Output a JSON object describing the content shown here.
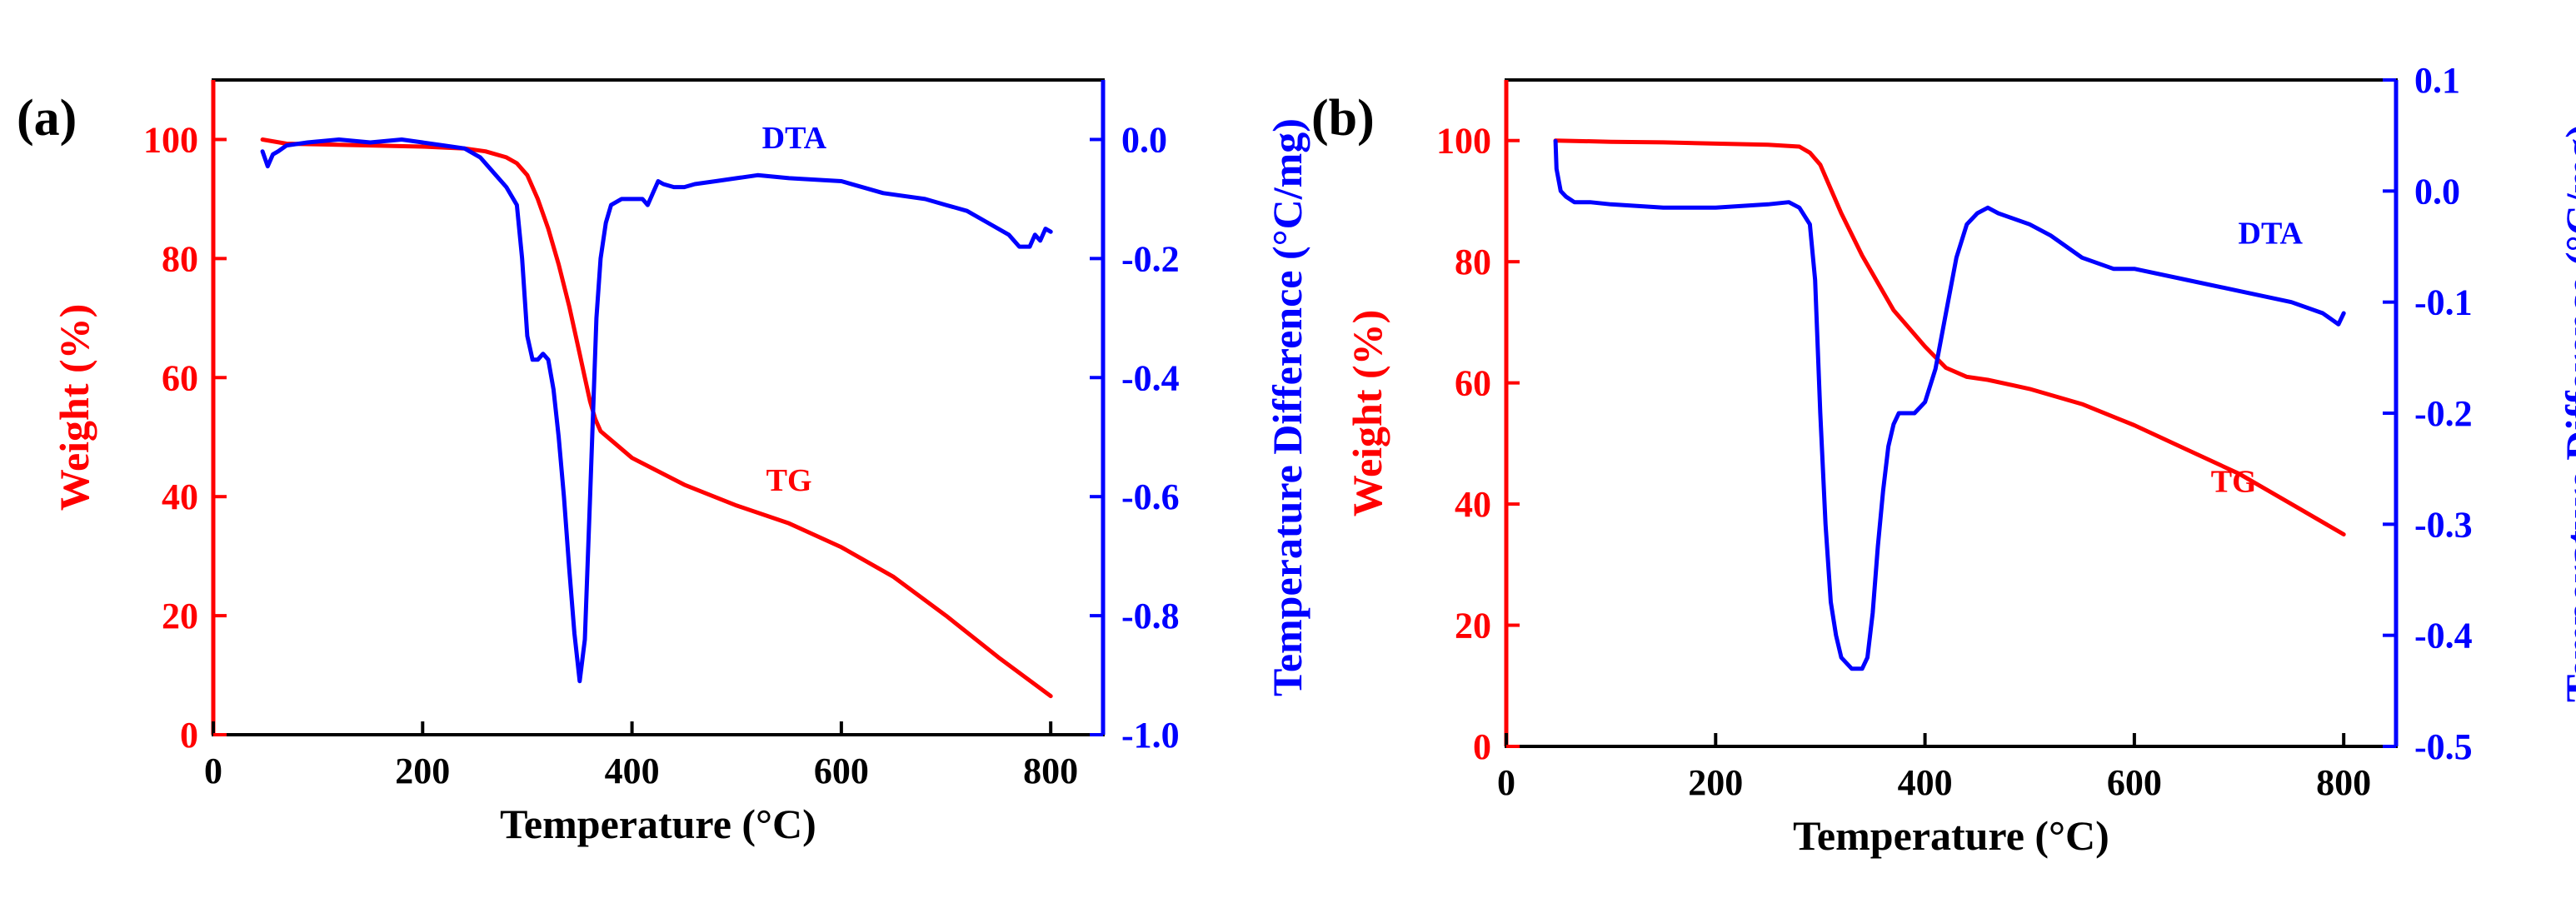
{
  "chart_data": [
    {
      "panel_label": "(a)",
      "type": "line",
      "xlabel": "Temperature (°C)",
      "ylabel_left": "Weight (%)",
      "ylabel_right": "Temperature Difference (°C/mg)",
      "xlim": [
        0,
        850
      ],
      "ylim_left": [
        0,
        110
      ],
      "ylim_right": [
        -1.0,
        0.1
      ],
      "xticks": [
        "0",
        "200",
        "400",
        "600",
        "800"
      ],
      "yticks_left": [
        "0",
        "20",
        "40",
        "60",
        "80",
        "100"
      ],
      "yticks_right": [
        "-1.0",
        "-0.8",
        "-0.6",
        "-0.4",
        "-0.2",
        "0.0"
      ],
      "annotations": [
        {
          "text": "DTA",
          "x": 555,
          "y_left": 98.5
        },
        {
          "text": "TG",
          "x": 550,
          "y_left": 41
        }
      ],
      "series": [
        {
          "name": "TG",
          "axis": "left",
          "color": "#ff0000",
          "x": [
            47,
            70,
            100,
            150,
            200,
            240,
            260,
            280,
            290,
            300,
            310,
            320,
            330,
            340,
            350,
            355,
            360,
            365,
            370,
            380,
            400,
            450,
            500,
            550,
            600,
            650,
            700,
            750,
            800
          ],
          "y": [
            100,
            99.3,
            99.2,
            99,
            98.8,
            98.5,
            98,
            97,
            96,
            94,
            90,
            85,
            79,
            72,
            64,
            60,
            56,
            53,
            51,
            49.5,
            46.5,
            42,
            38.5,
            35.5,
            31.5,
            26.5,
            20,
            13,
            6.5
          ]
        },
        {
          "name": "DTA",
          "axis": "right",
          "color": "#0000ff",
          "x": [
            47,
            52,
            57,
            62,
            70,
            90,
            120,
            150,
            180,
            200,
            220,
            240,
            255,
            270,
            280,
            290,
            295,
            300,
            305,
            310,
            315,
            320,
            325,
            330,
            335,
            340,
            345,
            350,
            355,
            360,
            363,
            366,
            370,
            375,
            380,
            390,
            400,
            410,
            415,
            420,
            425,
            430,
            440,
            450,
            460,
            480,
            500,
            520,
            550,
            600,
            640,
            680,
            700,
            720,
            740,
            760,
            770,
            780,
            785,
            790,
            795,
            800
          ],
          "y": [
            -0.02,
            -0.045,
            -0.025,
            -0.02,
            -0.01,
            -0.005,
            0.0,
            -0.005,
            0.0,
            -0.005,
            -0.01,
            -0.015,
            -0.03,
            -0.06,
            -0.08,
            -0.11,
            -0.2,
            -0.33,
            -0.37,
            -0.37,
            -0.36,
            -0.37,
            -0.42,
            -0.5,
            -0.6,
            -0.72,
            -0.83,
            -0.91,
            -0.84,
            -0.6,
            -0.45,
            -0.3,
            -0.2,
            -0.14,
            -0.11,
            -0.1,
            -0.1,
            -0.1,
            -0.11,
            -0.09,
            -0.07,
            -0.075,
            -0.08,
            -0.08,
            -0.075,
            -0.07,
            -0.065,
            -0.06,
            -0.065,
            -0.07,
            -0.09,
            -0.1,
            -0.11,
            -0.12,
            -0.14,
            -0.16,
            -0.18,
            -0.18,
            -0.16,
            -0.17,
            -0.15,
            -0.155
          ]
        }
      ]
    },
    {
      "panel_label": "(b)",
      "type": "line",
      "xlabel": "Temperature (°C)",
      "ylabel_left": "Weight (%)",
      "ylabel_right": "Temperature Difference (°C/mg)",
      "xlim": [
        0,
        850
      ],
      "ylim_left": [
        0,
        110
      ],
      "ylim_right": [
        -0.5,
        0.1
      ],
      "xticks": [
        "0",
        "200",
        "400",
        "600",
        "800"
      ],
      "yticks_left": [
        "0",
        "20",
        "40",
        "60",
        "80",
        "100"
      ],
      "yticks_right": [
        "-0.5",
        "-0.4",
        "-0.3",
        "-0.2",
        "-0.1",
        "0.0",
        "0.1"
      ],
      "annotations": [
        {
          "text": "DTA",
          "x": 730,
          "y_left": 83
        },
        {
          "text": "TG",
          "x": 695,
          "y_left": 42
        }
      ],
      "series": [
        {
          "name": "TG",
          "axis": "left",
          "color": "#ff0000",
          "x": [
            47,
            100,
            150,
            200,
            250,
            280,
            290,
            300,
            310,
            320,
            340,
            360,
            370,
            380,
            400,
            420,
            440,
            460,
            500,
            550,
            600,
            650,
            700,
            750,
            800
          ],
          "y": [
            100,
            99.8,
            99.7,
            99.5,
            99.3,
            99,
            98,
            96,
            92,
            88,
            81,
            75,
            72,
            70,
            66,
            62.5,
            61,
            60.5,
            59,
            56.5,
            53,
            49,
            45,
            40,
            35
          ]
        },
        {
          "name": "DTA",
          "axis": "right",
          "color": "#0000ff",
          "x": [
            47,
            48,
            52,
            57,
            65,
            80,
            100,
            150,
            200,
            250,
            270,
            280,
            290,
            295,
            300,
            305,
            310,
            315,
            320,
            330,
            340,
            345,
            350,
            355,
            360,
            365,
            370,
            375,
            380,
            390,
            400,
            410,
            420,
            430,
            440,
            450,
            460,
            470,
            500,
            520,
            550,
            580,
            600,
            650,
            700,
            750,
            780,
            795,
            800
          ],
          "y": [
            0.045,
            0.02,
            0.0,
            -0.005,
            -0.01,
            -0.01,
            -0.012,
            -0.015,
            -0.015,
            -0.012,
            -0.01,
            -0.015,
            -0.03,
            -0.08,
            -0.2,
            -0.3,
            -0.37,
            -0.4,
            -0.42,
            -0.43,
            -0.43,
            -0.42,
            -0.38,
            -0.32,
            -0.27,
            -0.23,
            -0.21,
            -0.2,
            -0.2,
            -0.2,
            -0.19,
            -0.16,
            -0.11,
            -0.06,
            -0.03,
            -0.02,
            -0.015,
            -0.02,
            -0.03,
            -0.04,
            -0.06,
            -0.07,
            -0.07,
            -0.08,
            -0.09,
            -0.1,
            -0.11,
            -0.12,
            -0.11
          ]
        }
      ]
    }
  ]
}
